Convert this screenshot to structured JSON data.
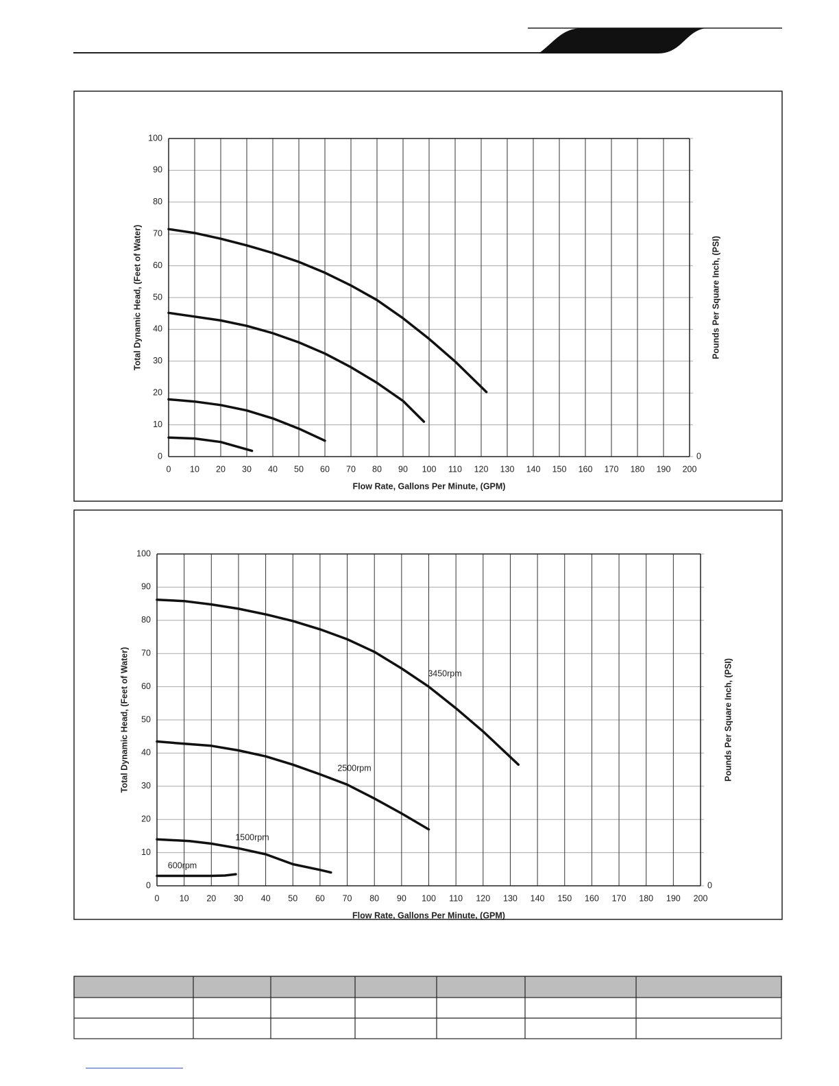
{
  "chart_data": [
    {
      "type": "line",
      "y_label": "Total Dynamic Head, (Feet of Water)",
      "x_label": "Flow Rate, Gallons Per Minute, (GPM)",
      "y2_label": "Pounds Per Square Inch, (PSI)",
      "xlim": [
        0,
        200
      ],
      "xticks": [
        0,
        10,
        20,
        30,
        40,
        50,
        60,
        70,
        80,
        90,
        100,
        110,
        120,
        130,
        140,
        150,
        160,
        170,
        180,
        190,
        200
      ],
      "ylim": [
        0,
        100
      ],
      "yticks": [
        0,
        10,
        20,
        30,
        40,
        50,
        60,
        70,
        80,
        90,
        100
      ],
      "y2lim": [
        0,
        43.3
      ],
      "y2ticks": [
        0
      ],
      "grid": true,
      "series": [
        {
          "color": "#111111",
          "x": [
            0,
            10,
            20,
            30,
            40,
            50,
            60,
            70,
            80,
            90,
            100,
            110,
            122
          ],
          "values": [
            71.5,
            70.3,
            68.5,
            66.4,
            64,
            61.2,
            57.8,
            53.8,
            49.2,
            43.5,
            37,
            29.9,
            20.3
          ]
        },
        {
          "color": "#111111",
          "x": [
            0,
            10,
            20,
            30,
            40,
            50,
            60,
            70,
            80,
            90,
            98
          ],
          "values": [
            45.2,
            44,
            42.8,
            41.1,
            38.8,
            35.9,
            32.4,
            28.1,
            23.2,
            17.5,
            11
          ]
        },
        {
          "color": "#111111",
          "x": [
            0,
            10,
            20,
            30,
            40,
            50,
            60
          ],
          "values": [
            18,
            17.3,
            16.2,
            14.5,
            12,
            8.8,
            5
          ]
        },
        {
          "color": "#111111",
          "x": [
            0,
            10,
            20,
            32
          ],
          "values": [
            6,
            5.7,
            4.6,
            1.8
          ]
        }
      ]
    },
    {
      "type": "line",
      "y_label": "Total Dynamic Head, (Feet of Water)",
      "x_label": "Flow Rate, Gallons Per Minute, (GPM)",
      "y2_label": "Pounds Per Square Inch, (PSI)",
      "xlim": [
        0,
        200
      ],
      "xticks": [
        0,
        10,
        20,
        30,
        40,
        50,
        60,
        70,
        80,
        90,
        100,
        110,
        120,
        130,
        140,
        150,
        160,
        170,
        180,
        190,
        200
      ],
      "ylim": [
        0,
        100
      ],
      "yticks": [
        0,
        10,
        20,
        30,
        40,
        50,
        60,
        70,
        80,
        90,
        100
      ],
      "y2lim": [
        0,
        43.3
      ],
      "y2ticks": [
        0
      ],
      "grid": true,
      "series": [
        {
          "name": "3450rpm",
          "color": "#111111",
          "x": [
            0,
            10,
            20,
            30,
            40,
            50,
            60,
            70,
            80,
            90,
            100,
            110,
            120,
            133
          ],
          "values": [
            86.2,
            85.8,
            84.8,
            83.5,
            81.8,
            79.8,
            77.3,
            74.3,
            70.5,
            65.5,
            60,
            53.5,
            46.5,
            36.5
          ]
        },
        {
          "name": "2500rpm",
          "color": "#111111",
          "x": [
            0,
            10,
            20,
            30,
            40,
            50,
            60,
            70,
            80,
            90,
            100
          ],
          "values": [
            43.5,
            42.8,
            42.2,
            40.8,
            39,
            36.5,
            33.6,
            30.5,
            26.3,
            21.8,
            17
          ]
        },
        {
          "name": "1500rpm",
          "color": "#111111",
          "x": [
            0,
            12,
            20,
            30,
            40,
            50,
            60,
            64
          ],
          "values": [
            14,
            13.5,
            12.7,
            11.3,
            9.5,
            6.5,
            4.8,
            4
          ]
        },
        {
          "name": "600rpm",
          "color": "#111111",
          "x": [
            0,
            10,
            20,
            25,
            29
          ],
          "values": [
            3,
            3,
            3,
            3.1,
            3.5
          ]
        }
      ]
    }
  ]
}
